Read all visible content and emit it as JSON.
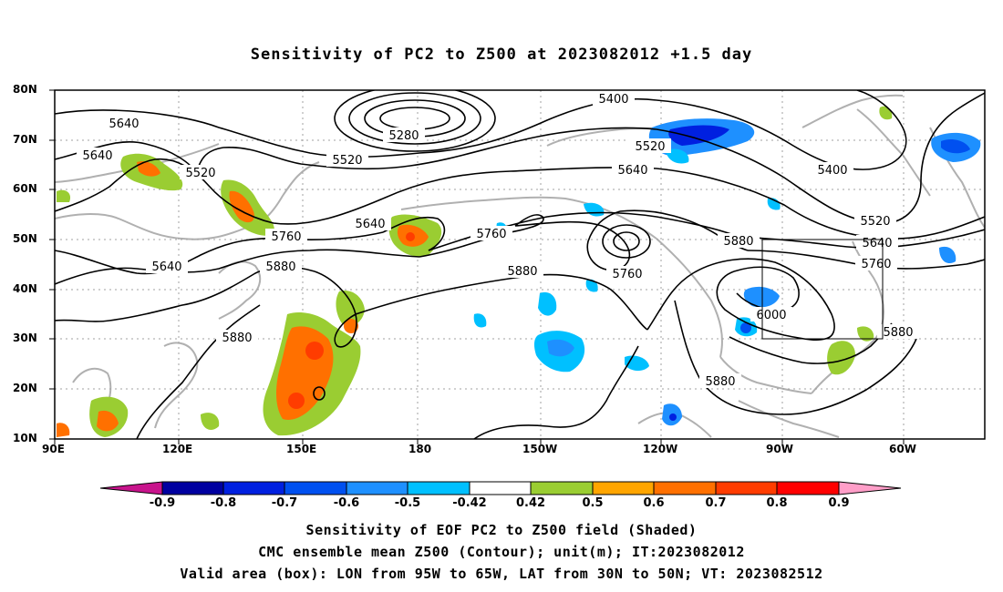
{
  "title": "Sensitivity of PC2 to Z500 at 2023082012 +1.5 day",
  "map": {
    "lat_labels": [
      "80N",
      "70N",
      "60N",
      "50N",
      "40N",
      "30N",
      "20N",
      "10N"
    ],
    "lon_labels": [
      "90E",
      "120E",
      "150E",
      "180",
      "150W",
      "120W",
      "90W",
      "60W"
    ],
    "contour_labels": [
      "5640",
      "5640",
      "5520",
      "5640",
      "5280",
      "5520",
      "5400",
      "5520",
      "5640",
      "5400",
      "5520",
      "5640",
      "5760",
      "5640",
      "5760",
      "5880",
      "5760",
      "5880",
      "5760",
      "5880",
      "6000",
      "5880",
      "5880",
      "5880"
    ],
    "colors": {
      "land": "#b0b0b0",
      "contour": "#000000",
      "grid": "#a0a0a0"
    }
  },
  "valid_box": {
    "lon_west": "95W",
    "lon_east": "65W",
    "lat_south": "30N",
    "lat_north": "50N"
  },
  "colorbar": {
    "labels": [
      "-0.9",
      "-0.8",
      "-0.7",
      "-0.6",
      "-0.5",
      "-0.42",
      "0.42",
      "0.5",
      "0.6",
      "0.7",
      "0.8",
      "0.9"
    ],
    "colors": [
      "#c8148c",
      "#0000a0",
      "#0020e0",
      "#0050f0",
      "#1e90ff",
      "#00c0ff",
      "#ffffff",
      "#9acd32",
      "#ffa500",
      "#ff7000",
      "#ff3c00",
      "#ff0000",
      "#ff9ec8"
    ]
  },
  "captions": [
    "Sensitivity of EOF PC2 to Z500 field (Shaded)",
    "CMC ensemble mean Z500 (Contour); unit(m); IT:2023082012",
    "Valid area (box): LON from 95W to 65W, LAT from 30N to 50N; VT: 2023082512"
  ]
}
